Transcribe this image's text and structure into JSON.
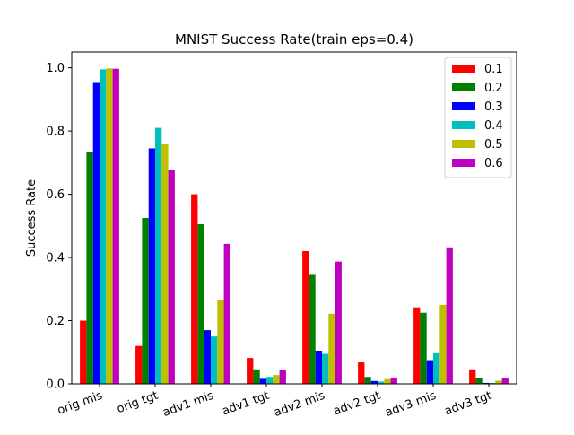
{
  "chart_data": {
    "type": "bar",
    "title": "MNIST Success Rate(train eps=0.4)",
    "xlabel": "",
    "ylabel": "Success Rate",
    "ylim": [
      0,
      1.05
    ],
    "yticks": [
      0.0,
      0.2,
      0.4,
      0.6,
      0.8,
      1.0
    ],
    "ytick_labels": [
      "0.0",
      "0.2",
      "0.4",
      "0.6",
      "0.8",
      "1.0"
    ],
    "categories": [
      "orig mis",
      "orig tgt",
      "adv1 mis",
      "adv1 tgt",
      "adv2 mis",
      "adv2 tgt",
      "adv3 mis",
      "adv3 tgt"
    ],
    "grid": false,
    "legend_position": "top-right",
    "series": [
      {
        "name": "0.1",
        "color": "#ff0000",
        "values": [
          0.2,
          0.12,
          0.6,
          0.082,
          0.42,
          0.068,
          0.242,
          0.046
        ]
      },
      {
        "name": "0.2",
        "color": "#008000",
        "values": [
          0.735,
          0.525,
          0.505,
          0.046,
          0.345,
          0.022,
          0.225,
          0.018
        ]
      },
      {
        "name": "0.3",
        "color": "#0000ff",
        "values": [
          0.955,
          0.745,
          0.17,
          0.016,
          0.105,
          0.009,
          0.075,
          0.003
        ]
      },
      {
        "name": "0.4",
        "color": "#00bfbf",
        "values": [
          0.995,
          0.81,
          0.15,
          0.022,
          0.095,
          0.007,
          0.097,
          0.003
        ]
      },
      {
        "name": "0.5",
        "color": "#bfbf00",
        "values": [
          0.998,
          0.76,
          0.267,
          0.028,
          0.222,
          0.015,
          0.25,
          0.01
        ]
      },
      {
        "name": "0.6",
        "color": "#bf00bf",
        "values": [
          0.997,
          0.678,
          0.443,
          0.043,
          0.387,
          0.02,
          0.432,
          0.018
        ]
      }
    ]
  }
}
